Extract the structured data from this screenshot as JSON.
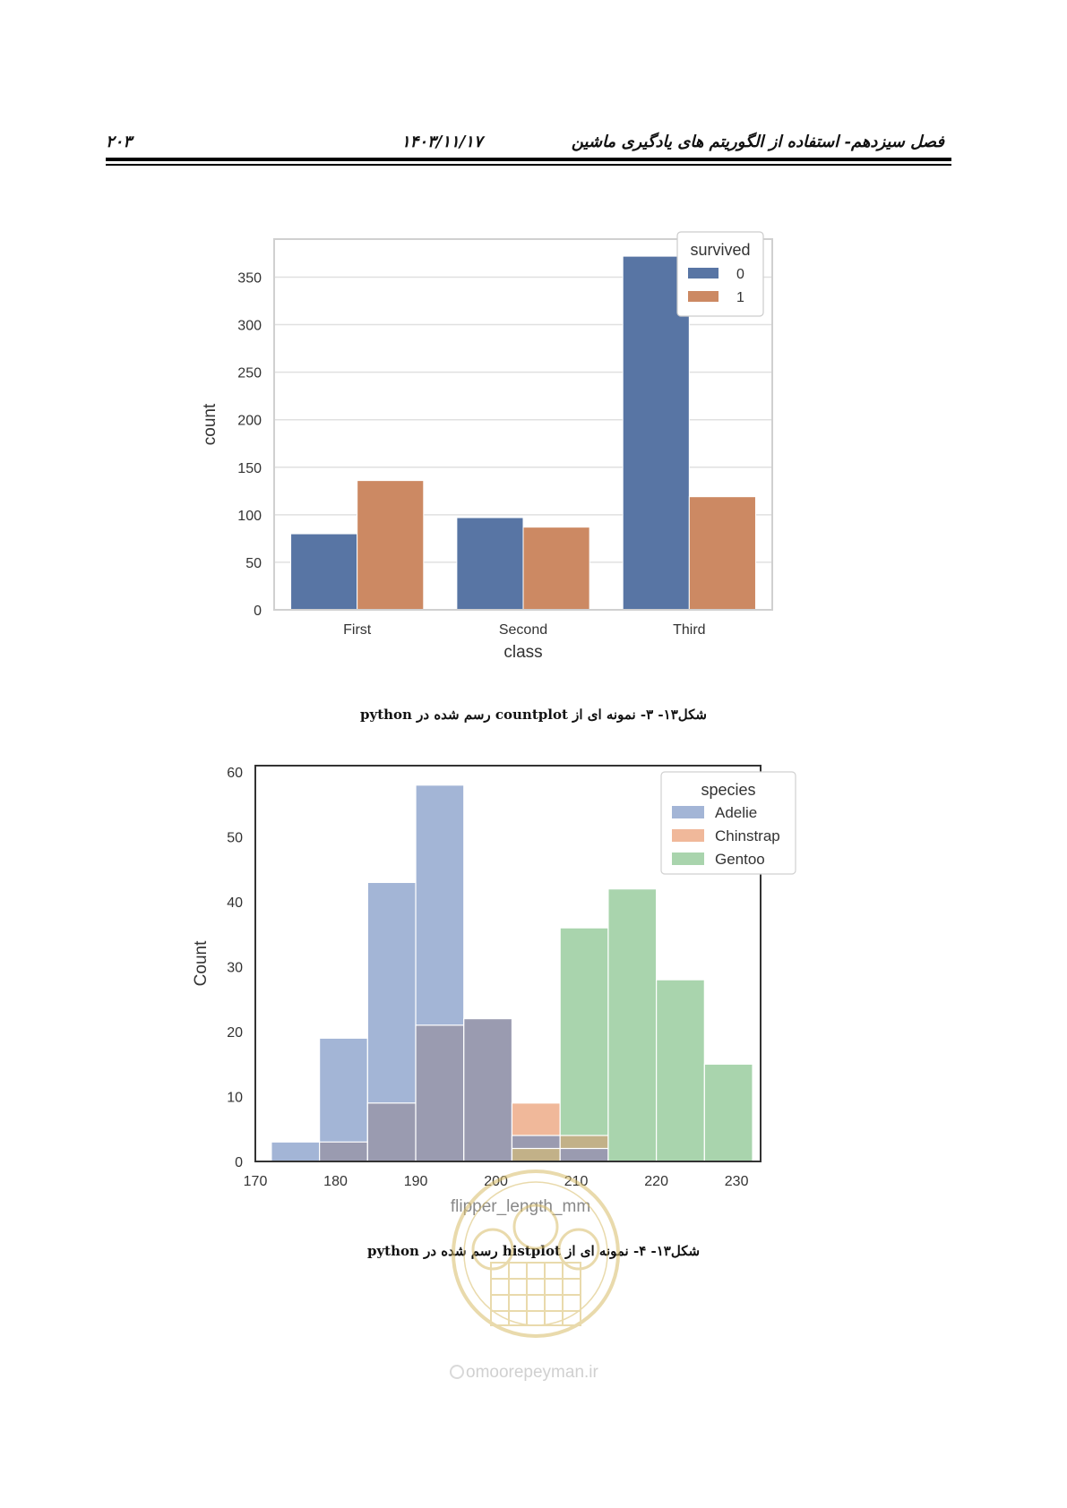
{
  "header": {
    "chapter_title": "فصل سیزدهم- استفاده از الگوریتم های یادگیری ماشین",
    "date": "۱۴۰۳/۱۱/۱۷",
    "page_number": "۲۰۳"
  },
  "figure1": {
    "caption": "شکل۱۳- ۳- نمونه ای از countplot رسم شده در python"
  },
  "figure2": {
    "caption": "شکل۱۳- ۴- نمونه ای از histplot رسم شده در python"
  },
  "watermark": {
    "site": "omoorepeyman.ir"
  },
  "colors": {
    "series0": "#5875a4",
    "series1": "#cc8963",
    "adelie": "#a3b5d6",
    "chinstrap": "#f0b89a",
    "gentoo": "#a9d4ad",
    "adelie_chinstrap_overlap": "#9a9bb0",
    "chinstrap_gentoo_overlap": "#c2b188",
    "watermark": "#d8bd6a"
  },
  "chart_data": [
    {
      "type": "bar",
      "categories": [
        "First",
        "Second",
        "Third"
      ],
      "series": [
        {
          "name": "0",
          "values": [
            80,
            97,
            372
          ]
        },
        {
          "name": "1",
          "values": [
            136,
            87,
            119
          ]
        }
      ],
      "xlabel": "class",
      "ylabel": "count",
      "ylim": [
        0,
        390
      ],
      "yticks": [
        0,
        50,
        100,
        150,
        200,
        250,
        300,
        350
      ],
      "legend_title": "survived",
      "legend_position": "top-right",
      "grid": true
    },
    {
      "type": "histogram",
      "bin_edges": [
        172,
        178,
        184,
        190,
        196,
        202,
        208,
        214,
        220,
        226,
        232
      ],
      "series": [
        {
          "name": "Adelie",
          "values": [
            3,
            19,
            43,
            58,
            22,
            4,
            2,
            0,
            0,
            0
          ]
        },
        {
          "name": "Chinstrap",
          "values": [
            0,
            3,
            9,
            21,
            22,
            9,
            4,
            0,
            0,
            0
          ]
        },
        {
          "name": "Gentoo",
          "values": [
            0,
            0,
            0,
            0,
            0,
            2,
            36,
            42,
            28,
            15
          ]
        }
      ],
      "xlabel": "flipper_length_mm",
      "ylabel": "Count",
      "xlim": [
        170,
        233
      ],
      "ylim": [
        0,
        61
      ],
      "xticks": [
        170,
        180,
        190,
        200,
        210,
        220,
        230
      ],
      "yticks": [
        0,
        10,
        20,
        30,
        40,
        50,
        60
      ],
      "legend_title": "species",
      "legend_position": "top-right",
      "grid": false
    }
  ]
}
